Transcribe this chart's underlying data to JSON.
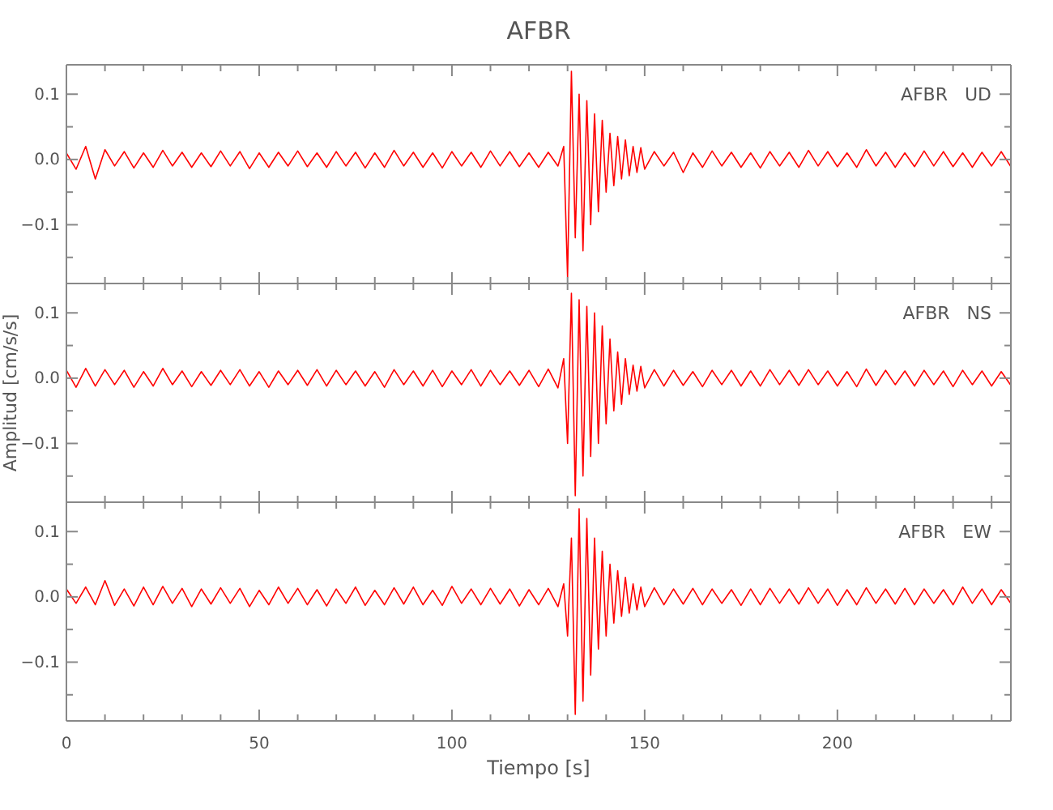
{
  "chart_data": [
    {
      "type": "line",
      "title": "AFBR",
      "annotations": [
        "AFBR   UD"
      ],
      "tick_labels": "y",
      "marker": "none",
      "line_style": "solid",
      "grid": false,
      "xlim": [
        0,
        245
      ],
      "xticks": [
        0,
        {
          "value": 10,
          "label": null
        },
        {
          "value": 20,
          "label": null
        },
        {
          "value": 30,
          "label": null
        },
        {
          "value": 40,
          "label": null
        },
        50,
        {
          "value": 60,
          "label": null
        },
        {
          "value": 70,
          "label": null
        },
        {
          "value": 80,
          "label": null
        },
        {
          "value": 90,
          "label": null
        },
        100,
        {
          "value": 110,
          "label": null
        },
        {
          "value": 120,
          "label": null
        },
        {
          "value": 130,
          "label": null
        },
        {
          "value": 140,
          "label": null
        },
        150,
        {
          "value": 160,
          "label": null
        },
        {
          "value": 170,
          "label": null
        },
        {
          "value": 180,
          "label": null
        },
        {
          "value": 190,
          "label": null
        },
        200,
        {
          "value": 210,
          "label": null
        },
        {
          "value": 220,
          "label": null
        },
        {
          "value": 230,
          "label": null
        },
        {
          "value": 240,
          "label": null
        }
      ],
      "ylim": [
        -0.19,
        0.145
      ],
      "yticks": [
        {
          "value": -0.15,
          "label": null
        },
        {
          "value": -0.1,
          "label": "−0.1"
        },
        {
          "value": -0.05,
          "label": null
        },
        {
          "value": 0,
          "label": "0.0"
        },
        {
          "value": 0.05,
          "label": null
        },
        {
          "value": 0.1,
          "label": "0.1"
        }
      ],
      "x": [
        0,
        2.5,
        5,
        7.5,
        10,
        12.5,
        15,
        17.5,
        20,
        22.5,
        25,
        27.5,
        30,
        32.5,
        35,
        37.5,
        40,
        42.5,
        45,
        47.5,
        50,
        52.5,
        55,
        57.5,
        60,
        62.5,
        65,
        67.5,
        70,
        72.5,
        75,
        77.5,
        80,
        82.5,
        85,
        87.5,
        90,
        92.5,
        95,
        97.5,
        100,
        102.5,
        105,
        107.5,
        110,
        112.5,
        115,
        117.5,
        120,
        122.5,
        125,
        127.5,
        129,
        130,
        131,
        132,
        133,
        134,
        135,
        136,
        137,
        138,
        139,
        140,
        141,
        142,
        143,
        144,
        145,
        146,
        147,
        148,
        149,
        150,
        152.5,
        155,
        157.5,
        160,
        162.5,
        165,
        167.5,
        170,
        172.5,
        175,
        177.5,
        180,
        182.5,
        185,
        187.5,
        190,
        192.5,
        195,
        197.5,
        200,
        202.5,
        205,
        207.5,
        210,
        212.5,
        215,
        217.5,
        220,
        222.5,
        225,
        227.5,
        230,
        232.5,
        235,
        237.5,
        240,
        242.5,
        245
      ],
      "series": [
        {
          "color": "#ff0000",
          "values": [
            0.01,
            -0.015,
            0.02,
            -0.03,
            0.015,
            -0.01,
            0.012,
            -0.013,
            0.01,
            -0.012,
            0.014,
            -0.01,
            0.011,
            -0.012,
            0.01,
            -0.011,
            0.013,
            -0.01,
            0.012,
            -0.014,
            0.01,
            -0.012,
            0.011,
            -0.01,
            0.013,
            -0.011,
            0.01,
            -0.012,
            0.012,
            -0.01,
            0.011,
            -0.013,
            0.01,
            -0.012,
            0.014,
            -0.01,
            0.011,
            -0.012,
            0.01,
            -0.013,
            0.012,
            -0.01,
            0.011,
            -0.012,
            0.013,
            -0.01,
            0.012,
            -0.011,
            0.01,
            -0.012,
            0.011,
            -0.01,
            0.02,
            -0.18,
            0.135,
            -0.12,
            0.1,
            -0.14,
            0.09,
            -0.1,
            0.07,
            -0.08,
            0.06,
            -0.05,
            0.04,
            -0.04,
            0.035,
            -0.03,
            0.03,
            -0.025,
            0.02,
            -0.02,
            0.018,
            -0.015,
            0.012,
            -0.01,
            0.011,
            -0.02,
            0.01,
            -0.012,
            0.013,
            -0.01,
            0.011,
            -0.012,
            0.01,
            -0.013,
            0.012,
            -0.01,
            0.011,
            -0.012,
            0.014,
            -0.01,
            0.012,
            -0.011,
            0.01,
            -0.012,
            0.015,
            -0.01,
            0.011,
            -0.012,
            0.01,
            -0.011,
            0.013,
            -0.01,
            0.012,
            -0.011,
            0.01,
            -0.012,
            0.011,
            -0.01,
            0.012,
            -0.011
          ]
        }
      ]
    },
    {
      "type": "line",
      "ylabel": "Amplitud [cm/s/s]",
      "annotations": [
        "AFBR   NS"
      ],
      "tick_labels": "y",
      "marker": "none",
      "line_style": "solid",
      "grid": false,
      "xlim": [
        0,
        245
      ],
      "xticks": [
        0,
        {
          "value": 10,
          "label": null
        },
        {
          "value": 20,
          "label": null
        },
        {
          "value": 30,
          "label": null
        },
        {
          "value": 40,
          "label": null
        },
        50,
        {
          "value": 60,
          "label": null
        },
        {
          "value": 70,
          "label": null
        },
        {
          "value": 80,
          "label": null
        },
        {
          "value": 90,
          "label": null
        },
        100,
        {
          "value": 110,
          "label": null
        },
        {
          "value": 120,
          "label": null
        },
        {
          "value": 130,
          "label": null
        },
        {
          "value": 140,
          "label": null
        },
        150,
        {
          "value": 160,
          "label": null
        },
        {
          "value": 170,
          "label": null
        },
        {
          "value": 180,
          "label": null
        },
        {
          "value": 190,
          "label": null
        },
        200,
        {
          "value": 210,
          "label": null
        },
        {
          "value": 220,
          "label": null
        },
        {
          "value": 230,
          "label": null
        },
        {
          "value": 240,
          "label": null
        }
      ],
      "ylim": [
        -0.19,
        0.145
      ],
      "yticks": [
        {
          "value": -0.15,
          "label": null
        },
        {
          "value": -0.1,
          "label": "−0.1"
        },
        {
          "value": -0.05,
          "label": null
        },
        {
          "value": 0,
          "label": "0.0"
        },
        {
          "value": 0.05,
          "label": null
        },
        {
          "value": 0.1,
          "label": "0.1"
        }
      ],
      "x": [
        0,
        2.5,
        5,
        7.5,
        10,
        12.5,
        15,
        17.5,
        20,
        22.5,
        25,
        27.5,
        30,
        32.5,
        35,
        37.5,
        40,
        42.5,
        45,
        47.5,
        50,
        52.5,
        55,
        57.5,
        60,
        62.5,
        65,
        67.5,
        70,
        72.5,
        75,
        77.5,
        80,
        82.5,
        85,
        87.5,
        90,
        92.5,
        95,
        97.5,
        100,
        102.5,
        105,
        107.5,
        110,
        112.5,
        115,
        117.5,
        120,
        122.5,
        125,
        127.5,
        129,
        130,
        131,
        132,
        133,
        134,
        135,
        136,
        137,
        138,
        139,
        140,
        141,
        142,
        143,
        144,
        145,
        146,
        147,
        148,
        149,
        150,
        152.5,
        155,
        157.5,
        160,
        162.5,
        165,
        167.5,
        170,
        172.5,
        175,
        177.5,
        180,
        182.5,
        185,
        187.5,
        190,
        192.5,
        195,
        197.5,
        200,
        202.5,
        205,
        207.5,
        210,
        212.5,
        215,
        217.5,
        220,
        222.5,
        225,
        227.5,
        230,
        232.5,
        235,
        237.5,
        240,
        242.5,
        245
      ],
      "series": [
        {
          "color": "#ff0000",
          "values": [
            0.012,
            -0.014,
            0.015,
            -0.012,
            0.013,
            -0.01,
            0.012,
            -0.014,
            0.01,
            -0.012,
            0.015,
            -0.01,
            0.011,
            -0.013,
            0.01,
            -0.011,
            0.012,
            -0.01,
            0.013,
            -0.012,
            0.01,
            -0.014,
            0.011,
            -0.01,
            0.012,
            -0.011,
            0.013,
            -0.012,
            0.012,
            -0.01,
            0.011,
            -0.012,
            0.01,
            -0.014,
            0.013,
            -0.01,
            0.011,
            -0.012,
            0.012,
            -0.013,
            0.011,
            -0.01,
            0.013,
            -0.012,
            0.012,
            -0.01,
            0.011,
            -0.011,
            0.012,
            -0.013,
            0.014,
            -0.015,
            0.03,
            -0.1,
            0.13,
            -0.18,
            0.12,
            -0.15,
            0.11,
            -0.12,
            0.1,
            -0.1,
            0.08,
            -0.07,
            0.06,
            -0.05,
            0.04,
            -0.04,
            0.03,
            -0.025,
            0.02,
            -0.02,
            0.018,
            -0.015,
            0.013,
            -0.012,
            0.012,
            -0.011,
            0.01,
            -0.013,
            0.012,
            -0.01,
            0.012,
            -0.012,
            0.011,
            -0.012,
            0.013,
            -0.01,
            0.012,
            -0.011,
            0.013,
            -0.01,
            0.011,
            -0.012,
            0.01,
            -0.013,
            0.014,
            -0.011,
            0.012,
            -0.01,
            0.011,
            -0.012,
            0.012,
            -0.01,
            0.011,
            -0.013,
            0.012,
            -0.01,
            0.011,
            -0.012,
            0.01,
            -0.011
          ]
        }
      ]
    },
    {
      "type": "line",
      "xlabel": "Tiempo [s]",
      "annotations": [
        "AFBR   EW"
      ],
      "marker": "none",
      "line_style": "solid",
      "grid": false,
      "xlim": [
        0,
        245
      ],
      "xticks": [
        0,
        {
          "value": 10,
          "label": null
        },
        {
          "value": 20,
          "label": null
        },
        {
          "value": 30,
          "label": null
        },
        {
          "value": 40,
          "label": null
        },
        50,
        {
          "value": 60,
          "label": null
        },
        {
          "value": 70,
          "label": null
        },
        {
          "value": 80,
          "label": null
        },
        {
          "value": 90,
          "label": null
        },
        100,
        {
          "value": 110,
          "label": null
        },
        {
          "value": 120,
          "label": null
        },
        {
          "value": 130,
          "label": null
        },
        {
          "value": 140,
          "label": null
        },
        150,
        {
          "value": 160,
          "label": null
        },
        {
          "value": 170,
          "label": null
        },
        {
          "value": 180,
          "label": null
        },
        {
          "value": 190,
          "label": null
        },
        200,
        {
          "value": 210,
          "label": null
        },
        {
          "value": 220,
          "label": null
        },
        {
          "value": 230,
          "label": null
        },
        {
          "value": 240,
          "label": null
        }
      ],
      "ylim": [
        -0.19,
        0.145
      ],
      "yticks": [
        {
          "value": -0.15,
          "label": null
        },
        {
          "value": -0.1,
          "label": "−0.1"
        },
        {
          "value": -0.05,
          "label": null
        },
        {
          "value": 0,
          "label": "0.0"
        },
        {
          "value": 0.05,
          "label": null
        },
        {
          "value": 0.1,
          "label": "0.1"
        }
      ],
      "x": [
        0,
        2.5,
        5,
        7.5,
        10,
        12.5,
        15,
        17.5,
        20,
        22.5,
        25,
        27.5,
        30,
        32.5,
        35,
        37.5,
        40,
        42.5,
        45,
        47.5,
        50,
        52.5,
        55,
        57.5,
        60,
        62.5,
        65,
        67.5,
        70,
        72.5,
        75,
        77.5,
        80,
        82.5,
        85,
        87.5,
        90,
        92.5,
        95,
        97.5,
        100,
        102.5,
        105,
        107.5,
        110,
        112.5,
        115,
        117.5,
        120,
        122.5,
        125,
        127.5,
        129,
        130,
        131,
        132,
        133,
        134,
        135,
        136,
        137,
        138,
        139,
        140,
        141,
        142,
        143,
        144,
        145,
        146,
        147,
        148,
        149,
        150,
        152.5,
        155,
        157.5,
        160,
        162.5,
        165,
        167.5,
        170,
        172.5,
        175,
        177.5,
        180,
        182.5,
        185,
        187.5,
        190,
        192.5,
        195,
        197.5,
        200,
        202.5,
        205,
        207.5,
        210,
        212.5,
        215,
        217.5,
        220,
        222.5,
        225,
        227.5,
        230,
        232.5,
        235,
        237.5,
        240,
        242.5,
        245
      ],
      "series": [
        {
          "color": "#ff0000",
          "values": [
            0.012,
            -0.01,
            0.015,
            -0.012,
            0.025,
            -0.013,
            0.012,
            -0.014,
            0.015,
            -0.012,
            0.016,
            -0.01,
            0.013,
            -0.015,
            0.012,
            -0.011,
            0.014,
            -0.01,
            0.013,
            -0.015,
            0.01,
            -0.012,
            0.015,
            -0.01,
            0.013,
            -0.012,
            0.011,
            -0.014,
            0.012,
            -0.01,
            0.015,
            -0.013,
            0.01,
            -0.012,
            0.014,
            -0.011,
            0.015,
            -0.012,
            0.01,
            -0.013,
            0.016,
            -0.01,
            0.012,
            -0.012,
            0.013,
            -0.011,
            0.012,
            -0.014,
            0.011,
            -0.012,
            0.013,
            -0.015,
            0.02,
            -0.06,
            0.09,
            -0.18,
            0.135,
            -0.16,
            0.12,
            -0.12,
            0.09,
            -0.08,
            0.07,
            -0.06,
            0.05,
            -0.04,
            0.04,
            -0.03,
            0.03,
            -0.025,
            0.02,
            -0.02,
            0.015,
            -0.015,
            0.014,
            -0.012,
            0.012,
            -0.011,
            0.013,
            -0.012,
            0.012,
            -0.01,
            0.011,
            -0.013,
            0.012,
            -0.012,
            0.013,
            -0.01,
            0.012,
            -0.011,
            0.014,
            -0.01,
            0.012,
            -0.013,
            0.011,
            -0.012,
            0.014,
            -0.01,
            0.012,
            -0.011,
            0.013,
            -0.012,
            0.012,
            -0.01,
            0.011,
            -0.012,
            0.015,
            -0.01,
            0.012,
            -0.012,
            0.011,
            -0.01
          ]
        }
      ]
    }
  ]
}
